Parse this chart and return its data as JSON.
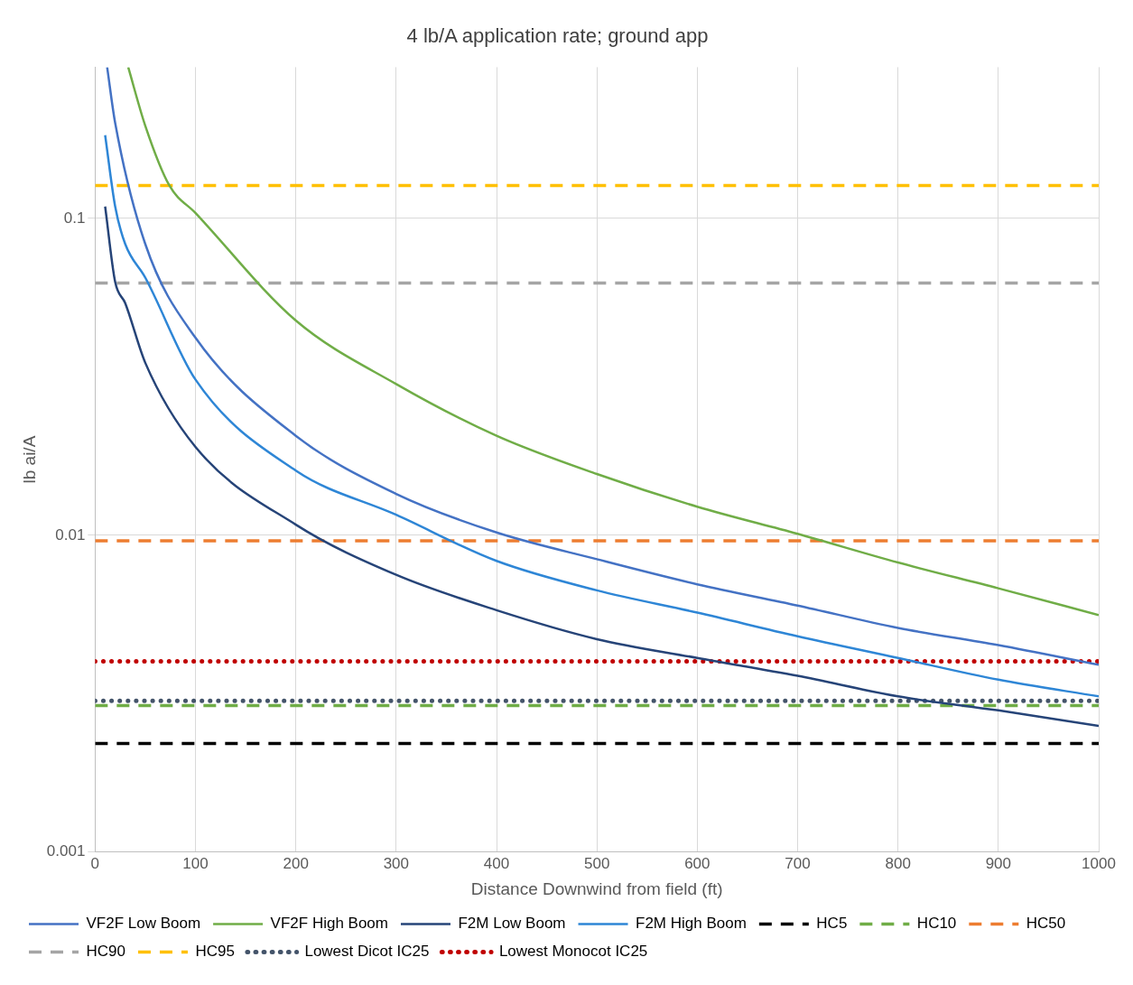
{
  "chart_data": {
    "type": "line",
    "title": "4 lb/A application rate; ground app",
    "xlabel": "Distance Downwind from field (ft)",
    "ylabel": "lb ai/A",
    "log": "y",
    "grid": true,
    "legend": "bottom",
    "marker": "none",
    "xlim": [
      0,
      1000
    ],
    "xticks": [
      0,
      100,
      200,
      300,
      400,
      500,
      600,
      700,
      800,
      900,
      1000
    ],
    "ylim": [
      0.001,
      0.3
    ],
    "yticks": [
      0.001,
      0.01,
      0.1
    ],
    "series": [
      {
        "name": "VF2F Low Boom",
        "color": "#4472c4",
        "line_style": "solid",
        "x": [
          12,
          20,
          50,
          100,
          200,
          300,
          400,
          500,
          600,
          700,
          800,
          900,
          1000
        ],
        "values": [
          0.3,
          0.2,
          0.083,
          0.042,
          0.0206,
          0.0135,
          0.0102,
          0.0084,
          0.007,
          0.006,
          0.0051,
          0.0045,
          0.0039
        ]
      },
      {
        "name": "VF2F High Boom",
        "color": "#70ad47",
        "line_style": "solid",
        "x": [
          33,
          50,
          74,
          100,
          200,
          300,
          400,
          500,
          600,
          700,
          800,
          900,
          1000
        ],
        "values": [
          0.3,
          0.196,
          0.127,
          0.104,
          0.0476,
          0.03,
          0.0206,
          0.0156,
          0.0123,
          0.0101,
          0.0082,
          0.0068,
          0.0056
        ]
      },
      {
        "name": "F2M Low Boom",
        "color": "#264478",
        "line_style": "solid",
        "x": [
          10,
          20,
          30,
          50,
          100,
          200,
          300,
          400,
          500,
          600,
          700,
          800,
          900,
          1000
        ],
        "values": [
          0.109,
          0.063,
          0.054,
          0.035,
          0.019,
          0.0108,
          0.0075,
          0.0058,
          0.0047,
          0.0041,
          0.0036,
          0.0031,
          0.0028,
          0.0025
        ]
      },
      {
        "name": "F2M High Boom",
        "color": "#2e86d6",
        "line_style": "solid",
        "x": [
          10,
          20,
          30,
          50,
          100,
          200,
          300,
          400,
          500,
          600,
          700,
          800,
          900,
          1000
        ],
        "values": [
          0.183,
          0.109,
          0.083,
          0.065,
          0.031,
          0.016,
          0.0116,
          0.0083,
          0.0067,
          0.0057,
          0.0048,
          0.0041,
          0.0035,
          0.0031
        ]
      },
      {
        "name": "HC5",
        "color": "#000000",
        "line_style": "dashed",
        "x": [
          0,
          1000
        ],
        "values": [
          0.0022,
          0.0022
        ]
      },
      {
        "name": "HC10",
        "color": "#70ad47",
        "line_style": "dashed",
        "x": [
          0,
          1000
        ],
        "values": [
          0.0029,
          0.0029
        ]
      },
      {
        "name": "HC50",
        "color": "#ed7d31",
        "line_style": "dashed",
        "x": [
          0,
          1000
        ],
        "values": [
          0.0096,
          0.0096
        ]
      },
      {
        "name": "HC90",
        "color": "#a5a5a5",
        "line_style": "dashed",
        "x": [
          0,
          1000
        ],
        "values": [
          0.0625,
          0.0625
        ]
      },
      {
        "name": "HC95",
        "color": "#ffc000",
        "line_style": "dashed",
        "x": [
          0,
          1000
        ],
        "values": [
          0.127,
          0.127
        ]
      },
      {
        "name": "Lowest Dicot IC25",
        "color": "#44546a",
        "line_style": "dotted",
        "x": [
          0,
          1000
        ],
        "values": [
          0.003,
          0.003
        ]
      },
      {
        "name": "Lowest Monocot IC25",
        "color": "#c00000",
        "line_style": "dotted",
        "x": [
          0,
          1000
        ],
        "values": [
          0.004,
          0.004
        ]
      }
    ]
  }
}
